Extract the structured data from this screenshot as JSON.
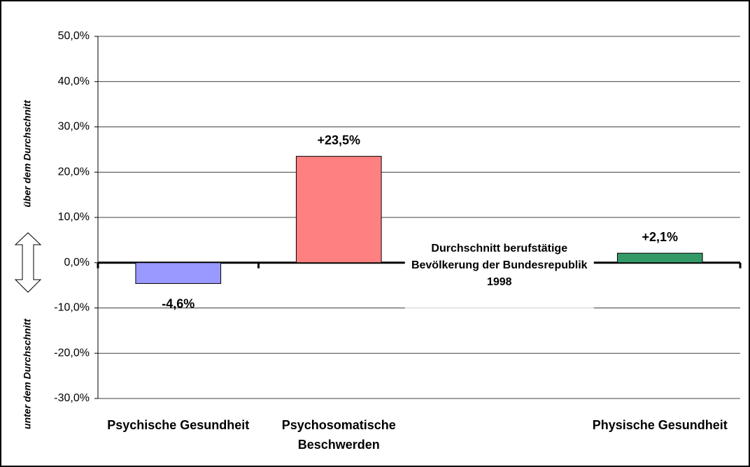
{
  "chart_data": {
    "type": "bar",
    "categories": [
      "Psychische Gesundheit",
      "Psychosomatische Beschwerden",
      null,
      "Physische Gesundheit"
    ],
    "values": [
      -4.6,
      23.5,
      null,
      2.1
    ],
    "value_labels": [
      "-4,6%",
      "+23,5%",
      null,
      "+2,1%"
    ],
    "colors": [
      "#9999ff",
      "#ff8080",
      null,
      "#339966"
    ],
    "ylim": [
      -30,
      50
    ],
    "yticks": [
      {
        "value": -30,
        "label": "-30,0%"
      },
      {
        "value": -20,
        "label": "-20,0%"
      },
      {
        "value": -10,
        "label": "-10,0%"
      },
      {
        "value": 0,
        "label": "0,0%"
      },
      {
        "value": 10,
        "label": "10,0%"
      },
      {
        "value": 20,
        "label": "20,0%"
      },
      {
        "value": 30,
        "label": "30,0%"
      },
      {
        "value": 40,
        "label": "40,0%"
      },
      {
        "value": 50,
        "label": "50,0%"
      }
    ],
    "ylabel_above": "über dem Durchschnitt",
    "ylabel_below": "unter dem Durchschnitt",
    "annotation": "Durchschnitt berufstätige Bevölkerung der Bundesrepublik 1998",
    "grid": true
  }
}
